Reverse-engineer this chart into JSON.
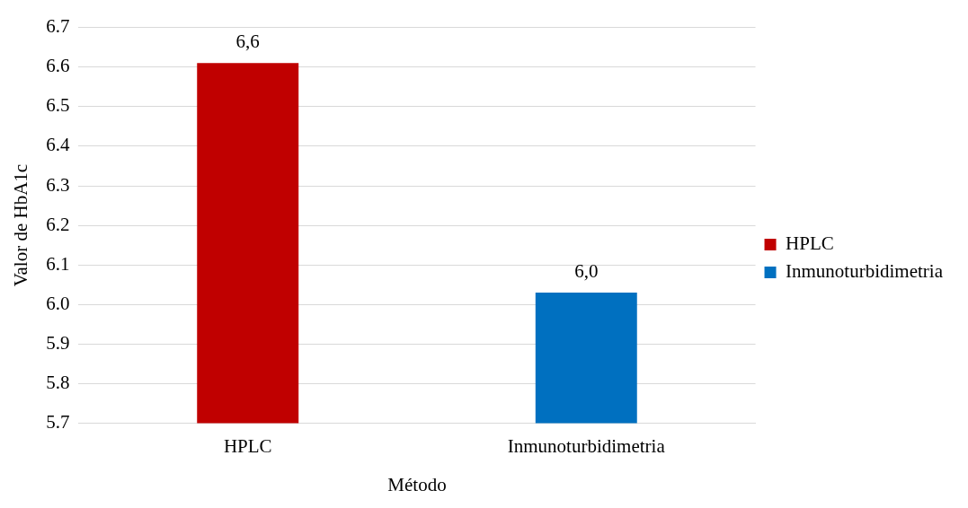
{
  "chart_data": {
    "type": "bar",
    "xlabel": "Método",
    "ylabel": "Valor de HbA1c",
    "categories": [
      "HPLC",
      "Inmunoturbidimetria"
    ],
    "series": [
      {
        "name": "HPLC",
        "color": "#c00000",
        "values": [
          6.61,
          null
        ],
        "value_labels": [
          "6,6",
          null
        ]
      },
      {
        "name": "Inmunoturbidimetria",
        "color": "#0070c0",
        "values": [
          null,
          6.03
        ],
        "value_labels": [
          null,
          "6,0"
        ]
      }
    ],
    "ylim": [
      5.7,
      6.7
    ],
    "yticks": [
      5.7,
      5.8,
      5.9,
      {
        "value": 6,
        "label": "6.0"
      },
      6.1,
      6.2,
      6.3,
      6.4,
      6.5,
      6.6,
      6.7
    ],
    "grid": "y",
    "legend": "right"
  }
}
